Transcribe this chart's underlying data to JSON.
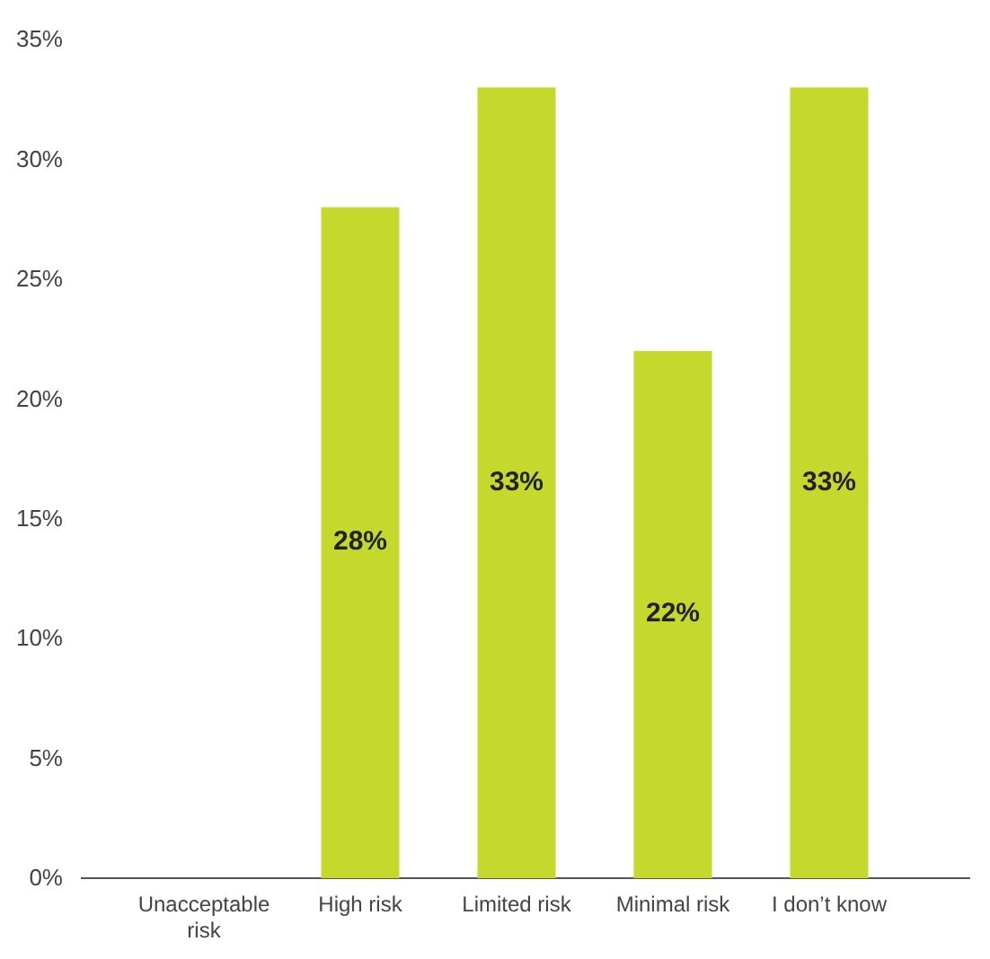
{
  "chart_data": {
    "type": "bar",
    "categories": [
      "Unacceptable risk",
      "High risk",
      "Limited risk",
      "Minimal risk",
      "I don’t know"
    ],
    "values": [
      0,
      28,
      33,
      22,
      33
    ],
    "value_labels": [
      null,
      "28%",
      "33%",
      "22%",
      "33%"
    ],
    "color": "#c5d92d",
    "ylim": [
      0,
      35
    ],
    "yticks": [
      {
        "value": 0,
        "label": "0%"
      },
      {
        "value": 5,
        "label": "5%"
      },
      {
        "value": 10,
        "label": "10%"
      },
      {
        "value": 15,
        "label": "15%"
      },
      {
        "value": 20,
        "label": "20%"
      },
      {
        "value": 25,
        "label": "25%"
      },
      {
        "value": 30,
        "label": "30%"
      },
      {
        "value": 35,
        "label": "35%"
      }
    ],
    "grid": false
  }
}
